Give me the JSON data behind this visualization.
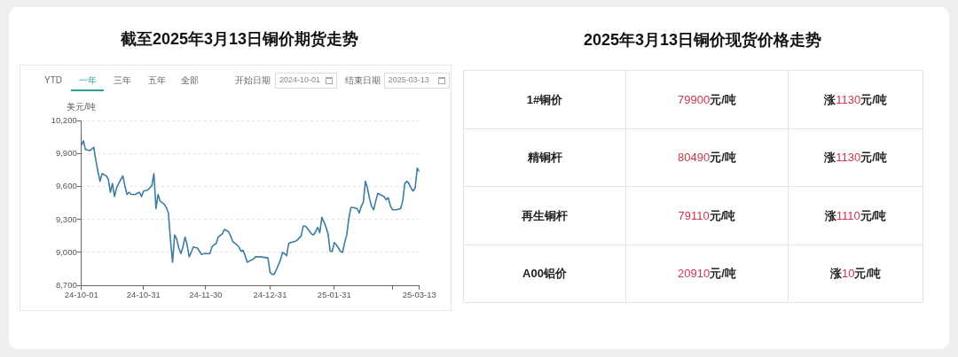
{
  "chart_data": [
    {
      "type": "line",
      "title": "截至2025年3月13日铜价期货走势",
      "ylabel": "美元/吨",
      "annotations": [
        "YTD",
        "一年",
        "三年",
        "五年",
        "全部",
        "开始日期",
        "2024-10-01",
        "结束日期",
        "2025-03-13"
      ],
      "x": [
        "2024-10-01",
        "2024-10-02",
        "2024-10-03",
        "2024-10-05",
        "2024-10-07",
        "2024-10-08",
        "2024-10-09",
        "2024-10-10",
        "2024-10-11",
        "2024-10-13",
        "2024-10-14",
        "2024-10-15",
        "2024-10-16",
        "2024-10-17",
        "2024-10-18",
        "2024-10-19",
        "2024-10-21",
        "2024-10-22",
        "2024-10-23",
        "2024-10-24",
        "2024-10-25",
        "2024-10-27",
        "2024-10-29",
        "2024-10-30",
        "2024-10-31",
        "2024-11-02",
        "2024-11-04",
        "2024-11-05",
        "2024-11-06",
        "2024-11-07",
        "2024-11-08",
        "2024-11-10",
        "2024-11-11",
        "2024-11-12",
        "2024-11-13",
        "2024-11-14",
        "2024-11-15",
        "2024-11-16",
        "2024-11-17",
        "2024-11-18",
        "2024-11-19",
        "2024-11-20",
        "2024-11-21",
        "2024-11-22",
        "2024-11-23",
        "2024-11-24",
        "2024-11-26",
        "2024-11-27",
        "2024-11-28",
        "2024-11-29",
        "2024-12-01",
        "2024-12-02",
        "2024-12-03",
        "2024-12-04",
        "2024-12-05",
        "2024-12-06",
        "2024-12-08",
        "2024-12-09",
        "2024-12-10",
        "2024-12-11",
        "2024-12-12",
        "2024-12-13",
        "2024-12-15",
        "2024-12-16",
        "2024-12-17",
        "2024-12-18",
        "2024-12-19",
        "2024-12-20",
        "2024-12-23",
        "2024-12-24",
        "2024-12-26",
        "2024-12-30",
        "2024-12-31",
        "2025-01-01",
        "2025-01-02",
        "2025-01-03",
        "2025-01-05",
        "2025-01-06",
        "2025-01-07",
        "2025-01-08",
        "2025-01-09",
        "2025-01-10",
        "2025-01-12",
        "2025-01-13",
        "2025-01-14",
        "2025-01-15",
        "2025-01-16",
        "2025-01-17",
        "2025-01-18",
        "2025-01-20",
        "2025-01-21",
        "2025-01-22",
        "2025-01-23",
        "2025-01-24",
        "2025-01-25",
        "2025-01-26",
        "2025-01-27",
        "2025-01-28",
        "2025-01-29",
        "2025-01-30",
        "2025-01-31",
        "2025-02-01",
        "2025-02-02",
        "2025-02-03",
        "2025-02-04",
        "2025-02-05",
        "2025-02-06",
        "2025-02-07",
        "2025-02-08",
        "2025-02-09",
        "2025-02-11",
        "2025-02-12",
        "2025-02-13",
        "2025-02-14",
        "2025-02-15",
        "2025-02-16",
        "2025-02-17",
        "2025-02-18",
        "2025-02-19",
        "2025-02-20",
        "2025-02-21",
        "2025-02-22",
        "2025-02-23",
        "2025-02-24",
        "2025-02-25",
        "2025-02-26",
        "2025-02-27",
        "2025-02-28",
        "2025-03-02",
        "2025-03-04",
        "2025-03-05",
        "2025-03-06",
        "2025-03-07",
        "2025-03-08",
        "2025-03-09",
        "2025-03-10",
        "2025-03-11",
        "2025-03-12",
        "2025-03-13"
      ],
      "values": [
        9980,
        10020,
        9940,
        9930,
        9960,
        9840,
        9740,
        9650,
        9720,
        9700,
        9670,
        9550,
        9630,
        9510,
        9590,
        9630,
        9700,
        9610,
        9530,
        9550,
        9530,
        9530,
        9550,
        9510,
        9560,
        9570,
        9610,
        9720,
        9400,
        9530,
        9470,
        9440,
        9410,
        9360,
        9110,
        8910,
        9160,
        9120,
        9040,
        8990,
        9050,
        9140,
        9070,
        8960,
        9000,
        9050,
        9040,
        9010,
        8980,
        8990,
        8990,
        8990,
        9050,
        9070,
        9080,
        9140,
        9170,
        9210,
        9200,
        9190,
        9150,
        9100,
        9070,
        9050,
        9010,
        9020,
        8970,
        8910,
        8940,
        8960,
        8960,
        8950,
        8820,
        8800,
        8800,
        8840,
        8930,
        9000,
        8990,
        8970,
        9080,
        9090,
        9100,
        9110,
        9130,
        9150,
        9240,
        9240,
        9220,
        9170,
        9160,
        9190,
        9230,
        9180,
        9320,
        9280,
        9230,
        9170,
        9010,
        9010,
        9090,
        9070,
        9040,
        9010,
        9000,
        9090,
        9160,
        9310,
        9410,
        9410,
        9400,
        9360,
        9420,
        9460,
        9650,
        9590,
        9490,
        9420,
        9390,
        9470,
        9540,
        9530,
        9520,
        9510,
        9480,
        9500,
        9430,
        9390,
        9390,
        9400,
        9470,
        9630,
        9650,
        9630,
        9590,
        9560,
        9590,
        9770,
        9740
      ],
      "color": "#3b7ea1",
      "xlim": [
        "2024-10-01",
        "2025-03-13"
      ],
      "xticks": [
        {
          "value": "2024-10-01",
          "label": "24-10-01"
        },
        {
          "value": "2024-10-31",
          "label": "24-10-31"
        },
        {
          "value": "2024-11-30",
          "label": "24-11-30"
        },
        {
          "value": "2024-12-31",
          "label": "24-12-31"
        },
        {
          "value": "2025-01-31",
          "label": "25-01-31"
        },
        {
          "value": "2025-02-28",
          "label": null
        },
        {
          "value": "2025-03-13",
          "label": "25-03-13"
        }
      ],
      "ylim": [
        8700,
        10200
      ],
      "yticks": [
        {
          "value": 8700,
          "label": "8,700"
        },
        {
          "value": 9000,
          "label": "9,000"
        },
        {
          "value": 9300,
          "label": "9,300"
        },
        {
          "value": 9600,
          "label": "9,600"
        },
        {
          "value": 9900,
          "label": "9,900"
        },
        {
          "value": 10200,
          "label": "10,200"
        }
      ],
      "grid": "y"
    },
    {
      "type": "other",
      "title": "2025年3月13日铜价现货价格走势",
      "color": "#c8374d",
      "annotations": [
        "1#铜价",
        "79900元/吨",
        "涨1130元/吨",
        "精铜杆",
        "80490元/吨",
        "涨1130元/吨",
        "再生铜杆",
        "79110元/吨",
        "涨1110元/吨",
        "A00铝价",
        "20910元/吨",
        "涨10元/吨"
      ]
    }
  ]
}
